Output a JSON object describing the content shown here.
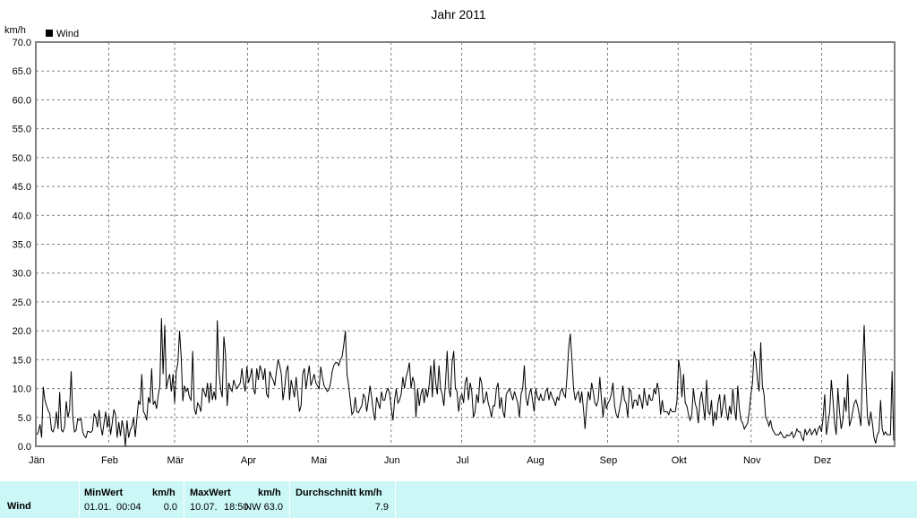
{
  "chart_data": {
    "type": "line",
    "title": "Jahr 2011",
    "ylabel": "km/h",
    "legend": "Wind",
    "legend_position": "top-left",
    "grid": true,
    "ylim": [
      0,
      70
    ],
    "y_ticks": [
      "0.0",
      "5.0",
      "10.0",
      "15.0",
      "20.0",
      "25.0",
      "30.0",
      "35.0",
      "40.0",
      "45.0",
      "50.0",
      "55.0",
      "60.0",
      "65.0",
      "70.0"
    ],
    "months": [
      "Jän",
      "Feb",
      "Mär",
      "Apr",
      "Mai",
      "Jun",
      "Jul",
      "Aug",
      "Sep",
      "Okt",
      "Nov",
      "Dez"
    ],
    "series": [
      {
        "name": "Wind",
        "color": "#000000",
        "values": [
          2.0,
          2.5,
          3.8,
          1.5,
          10.3,
          8.0,
          7.0,
          6.2,
          5.6,
          2.8,
          2.5,
          3.5,
          6.0,
          3.0,
          9.4,
          2.8,
          2.5,
          3.4,
          7.8,
          5.0,
          6.3,
          13.0,
          5.0,
          2.5,
          2.8,
          4.8,
          4.5,
          4.8,
          2.5,
          1.8,
          1.5,
          2.6,
          2.5,
          2.4,
          2.8,
          5.7,
          5.0,
          3.3,
          6.3,
          3.5,
          1.9,
          4.0,
          6.0,
          3.2,
          5.3,
          2.0,
          4.0,
          6.4,
          5.5,
          1.5,
          4.2,
          1.8,
          4.5,
          3.0,
          0.0,
          4.5,
          1.5,
          2.8,
          3.5,
          5.0,
          1.6,
          4.8,
          7.8,
          7.2,
          12.5,
          6.0,
          5.5,
          4.5,
          8.5,
          7.5,
          13.5,
          7.2,
          7.8,
          6.5,
          8.8,
          10.5,
          22.2,
          12.5,
          21.0,
          10.0,
          11.5,
          12.5,
          9.5,
          12.5,
          7.5,
          13.0,
          14.5,
          20.0,
          15.5,
          7.8,
          10.5,
          9.5,
          10.0,
          8.5,
          8.0,
          16.5,
          6.5,
          5.5,
          7.5,
          7.0,
          6.0,
          10.0,
          9.5,
          8.5,
          11.0,
          7.5,
          11.0,
          8.0,
          9.5,
          8.0,
          21.8,
          13.0,
          10.0,
          8.5,
          19.0,
          16.0,
          7.0,
          11.0,
          10.0,
          9.5,
          11.5,
          10.5,
          10.0,
          10.5,
          11.0,
          13.5,
          11.0,
          9.5,
          13.8,
          11.0,
          12.0,
          13.5,
          10.0,
          9.0,
          13.5,
          11.5,
          14.0,
          13.0,
          11.5,
          13.5,
          9.0,
          8.5,
          13.0,
          12.0,
          11.5,
          10.5,
          13.0,
          15.0,
          14.0,
          12.5,
          8.0,
          10.0,
          13.0,
          14.0,
          8.0,
          11.5,
          10.0,
          8.5,
          12.0,
          9.0,
          6.0,
          7.0,
          12.5,
          13.5,
          10.0,
          12.0,
          14.0,
          10.5,
          11.5,
          12.5,
          11.0,
          10.5,
          10.0,
          13.8,
          12.0,
          10.5,
          10.0,
          9.5,
          9.8,
          11.0,
          13.0,
          14.0,
          14.5,
          14.5,
          14.0,
          15.0,
          15.5,
          17.5,
          20.0,
          12.5,
          10.5,
          8.0,
          5.5,
          6.0,
          8.5,
          6.0,
          5.8,
          6.5,
          7.0,
          9.0,
          8.5,
          6.0,
          8.0,
          10.5,
          8.5,
          6.0,
          4.5,
          8.5,
          7.5,
          6.5,
          9.5,
          8.0,
          8.0,
          9.5,
          10.0,
          9.0,
          6.5,
          4.5,
          8.0,
          10.0,
          7.5,
          8.0,
          9.0,
          12.0,
          10.0,
          12.0,
          13.0,
          14.5,
          10.0,
          12.0,
          11.0,
          5.0,
          10.0,
          7.0,
          9.0,
          10.0,
          7.5,
          10.0,
          8.5,
          10.5,
          14.0,
          8.5,
          15.0,
          11.0,
          9.0,
          14.0,
          10.0,
          9.0,
          7.0,
          11.0,
          16.5,
          10.0,
          8.5,
          14.5,
          16.5,
          10.0,
          9.5,
          6.0,
          8.5,
          9.0,
          7.5,
          11.0,
          12.0,
          8.0,
          11.0,
          9.5,
          5.0,
          6.0,
          9.0,
          7.5,
          12.0,
          11.0,
          7.5,
          8.0,
          9.5,
          7.5,
          6.5,
          5.0,
          7.0,
          7.0,
          10.0,
          11.0,
          6.5,
          8.5,
          6.0,
          5.0,
          9.0,
          9.5,
          10.0,
          9.0,
          8.0,
          9.5,
          8.5,
          7.5,
          5.0,
          9.0,
          10.0,
          14.0,
          8.5,
          7.0,
          9.0,
          10.0,
          8.0,
          6.0,
          10.0,
          8.5,
          8.0,
          9.0,
          8.0,
          8.0,
          9.5,
          10.0,
          8.0,
          9.5,
          8.5,
          8.0,
          7.0,
          8.5,
          8.0,
          9.5,
          10.0,
          9.0,
          8.5,
          12.0,
          17.0,
          19.5,
          15.0,
          10.0,
          8.0,
          9.0,
          9.5,
          7.5,
          9.5,
          6.5,
          3.0,
          7.0,
          9.5,
          8.0,
          11.0,
          9.5,
          7.5,
          7.0,
          8.0,
          12.0,
          8.0,
          5.0,
          8.5,
          6.5,
          7.5,
          8.0,
          9.0,
          11.0,
          7.0,
          5.5,
          5.0,
          6.5,
          8.0,
          10.5,
          8.0,
          7.5,
          5.0,
          10.0,
          9.5,
          6.5,
          8.0,
          8.0,
          7.0,
          9.0,
          8.0,
          6.5,
          10.0,
          8.0,
          7.0,
          9.0,
          8.0,
          8.0,
          10.0,
          9.0,
          11.0,
          9.5,
          5.5,
          8.0,
          6.0,
          6.0,
          6.0,
          5.5,
          6.5,
          6.0,
          6.0,
          6.0,
          8.0,
          15.0,
          13.0,
          8.5,
          12.5,
          7.5,
          7.0,
          5.5,
          4.5,
          5.5,
          10.0,
          7.5,
          6.5,
          4.0,
          8.0,
          9.5,
          7.0,
          4.5,
          11.5,
          6.0,
          5.5,
          8.0,
          3.5,
          6.0,
          4.5,
          7.5,
          9.0,
          5.0,
          7.0,
          9.0,
          6.0,
          4.5,
          7.0,
          5.5,
          10.0,
          6.5,
          4.5,
          10.5,
          6.5,
          4.5,
          4.0,
          3.0,
          3.5,
          4.0,
          6.0,
          9.0,
          11.0,
          16.5,
          15.0,
          11.5,
          9.5,
          18.0,
          10.5,
          9.0,
          5.0,
          4.5,
          3.5,
          4.5,
          3.0,
          2.5,
          2.0,
          2.0,
          2.0,
          2.5,
          2.0,
          1.5,
          1.5,
          2.0,
          1.8,
          2.0,
          2.5,
          1.5,
          2.0,
          3.0,
          2.5,
          2.5,
          1.5,
          1.0,
          3.0,
          2.0,
          2.5,
          3.0,
          2.0,
          2.5,
          3.0,
          2.0,
          3.0,
          3.5,
          2.5,
          5.0,
          9.0,
          2.0,
          4.0,
          6.0,
          11.5,
          8.0,
          4.0,
          2.0,
          10.0,
          6.0,
          3.0,
          4.5,
          8.5,
          6.0,
          12.5,
          3.5,
          4.5,
          6.0,
          7.5,
          8.0,
          7.0,
          5.5,
          3.5,
          13.0,
          21.0,
          12.0,
          5.0,
          3.5,
          6.0,
          4.0,
          1.5,
          0.5,
          2.0,
          2.5,
          8.0,
          3.0,
          2.0,
          2.5,
          2.0,
          2.0,
          2.0,
          13.0,
          1.0
        ]
      }
    ]
  },
  "summary": {
    "row_label": "Wind",
    "min_header": "MinWert",
    "min_unit": "km/h",
    "min_date": "01.01.",
    "min_time": "00:04",
    "min_value": "0.0",
    "max_header": "MaxWert",
    "max_unit": "km/h",
    "max_date": "10.07.",
    "max_time": "18:50",
    "max_dir_value": "NW 63.0",
    "avg_header": "Durchschnitt km/h",
    "avg_value": "7.9"
  }
}
